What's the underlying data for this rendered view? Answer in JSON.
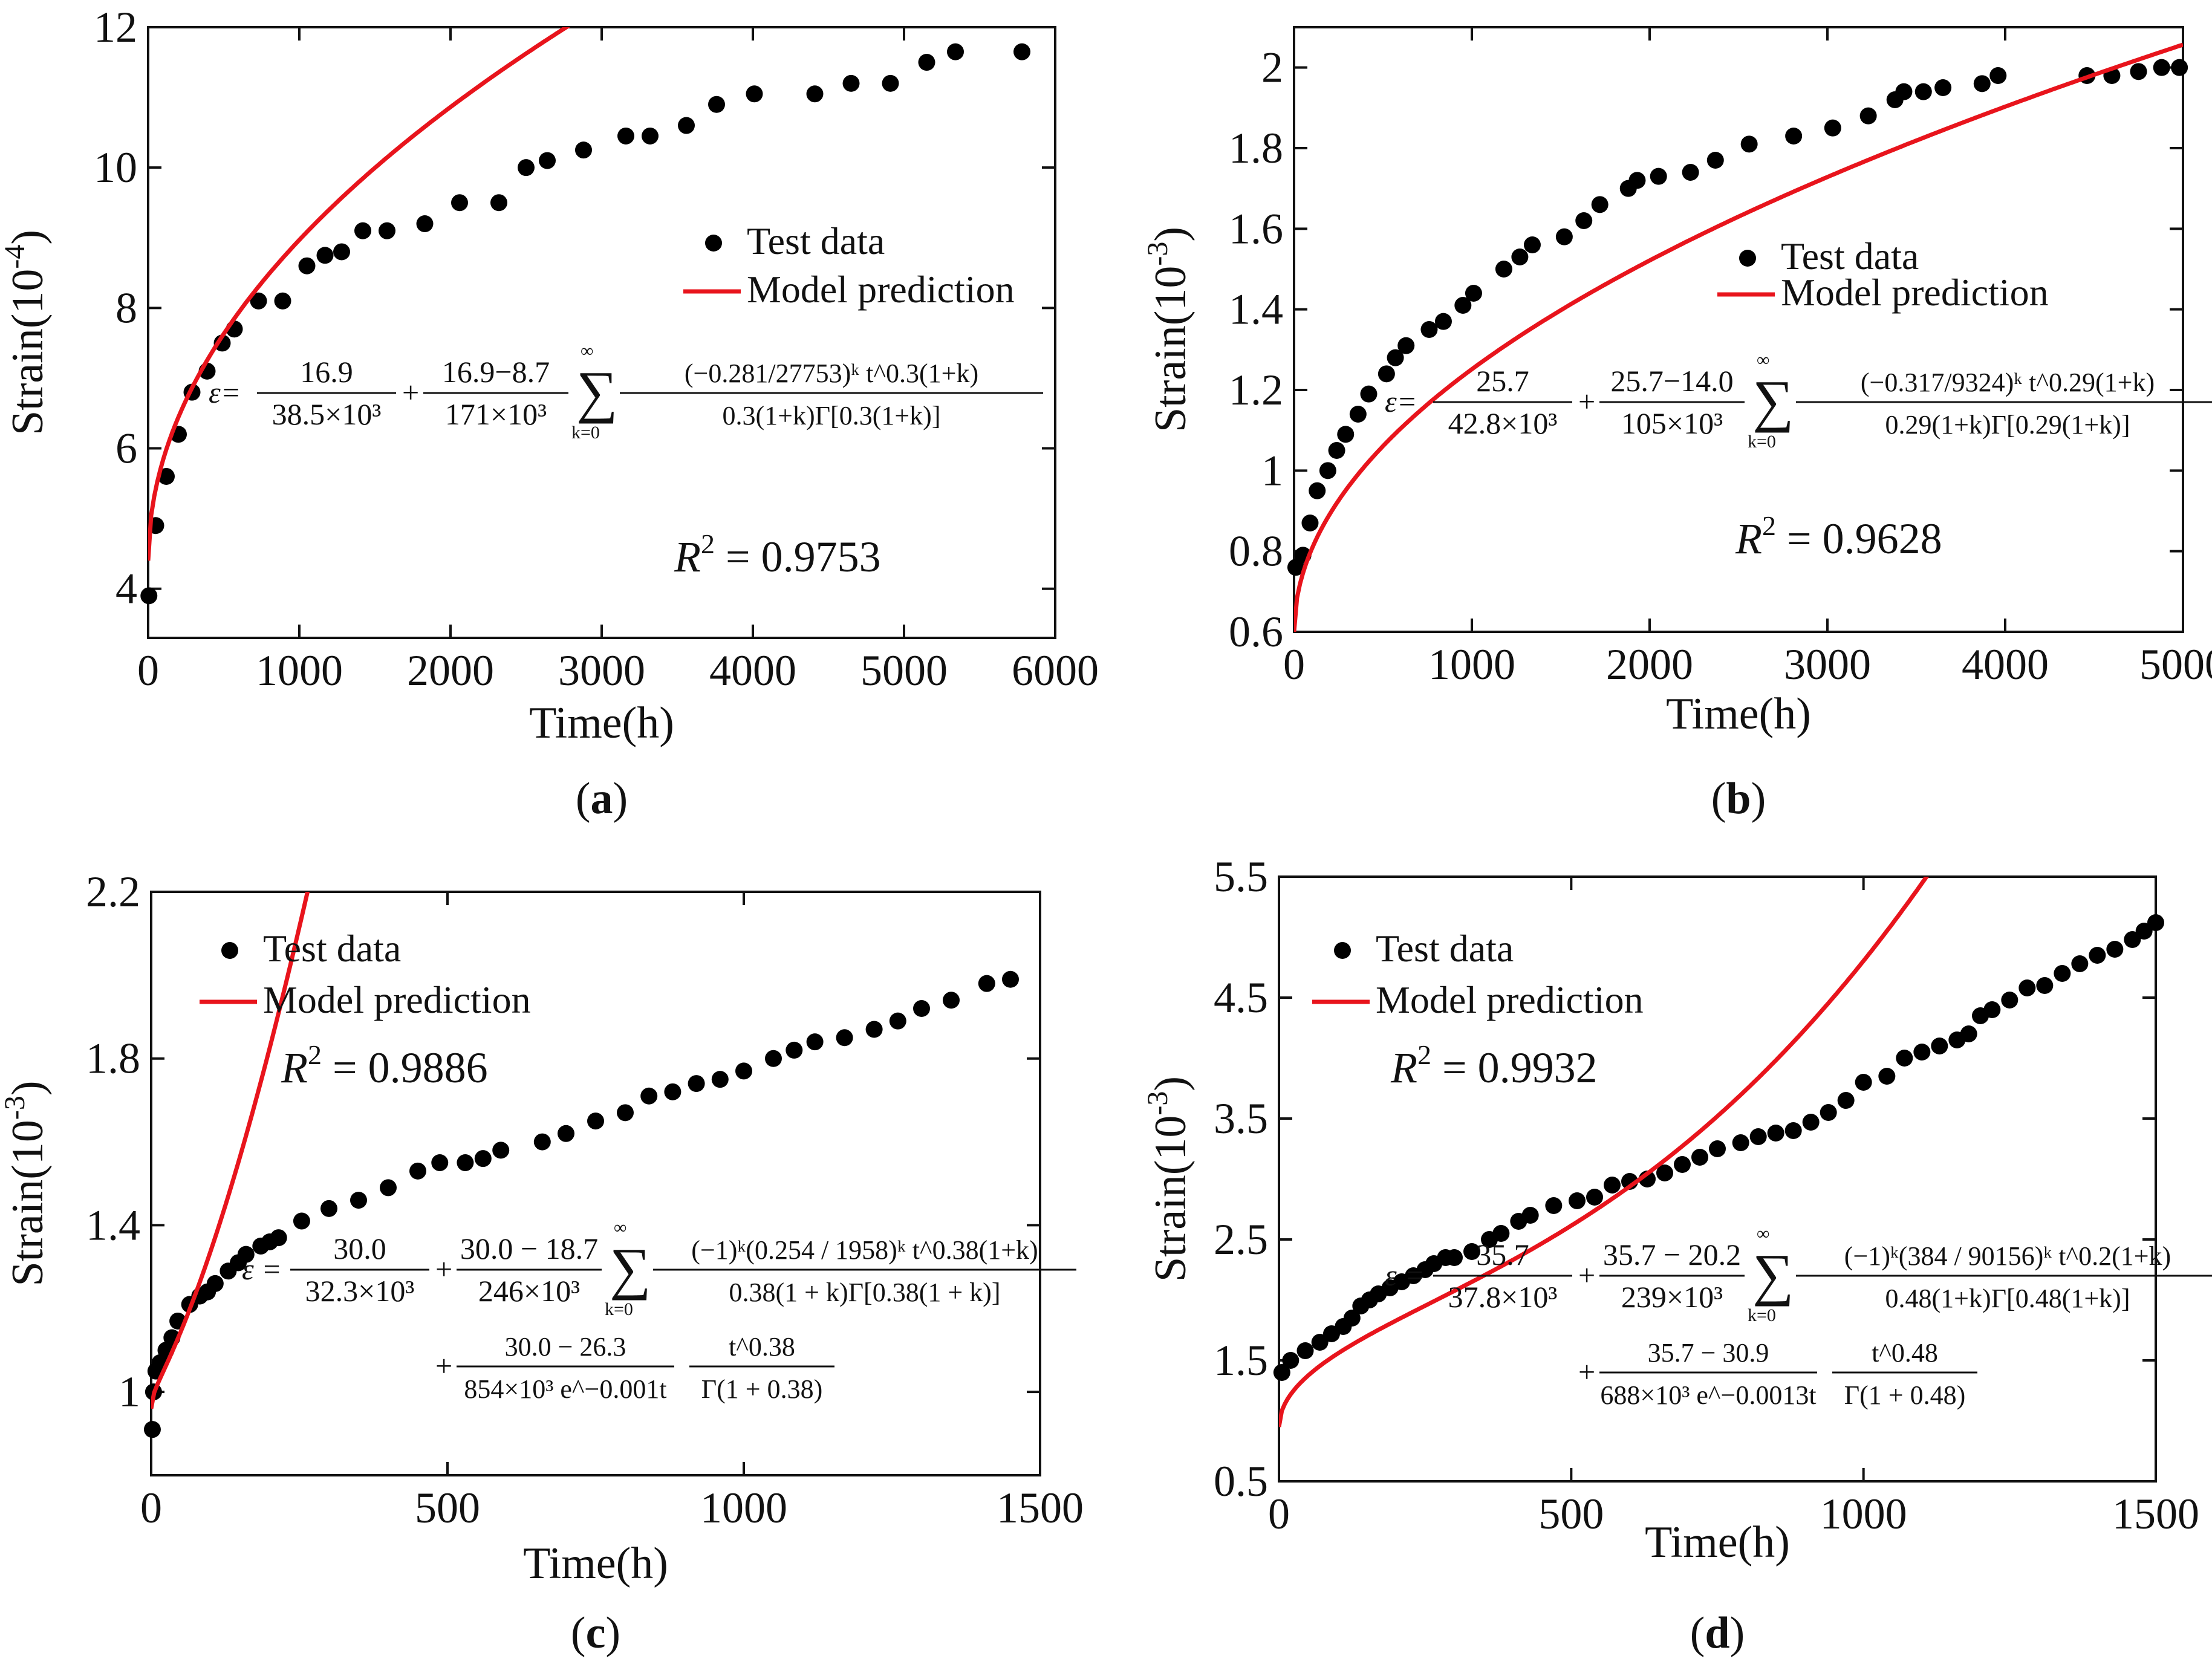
{
  "chart_data": [
    {
      "type": "scatter",
      "panel_label": "a",
      "title": "",
      "xlabel": "Time(h)",
      "ylabel": "Strain(10",
      "ylabel_exp": "-4",
      "xlim": [
        0,
        6000
      ],
      "ylim": [
        3.3,
        12
      ],
      "xticks": [
        0,
        1000,
        2000,
        3000,
        4000,
        5000,
        6000
      ],
      "yticks": [
        4,
        6,
        8,
        10,
        12
      ],
      "legend": [
        "Test data",
        "Model prediction"
      ],
      "r2": "0.9753",
      "equation": {
        "lhs": "ε=",
        "t1": [
          "16.9",
          "38.5×10³"
        ],
        "t2": [
          "16.9−8.7",
          "171×10³"
        ],
        "t3": [
          "(−0.281/27753)ᵏ t^0.3(1+k)",
          "0.3(1+k)Γ[0.3(1+k)]"
        ],
        "sum": "∑ k=0..∞"
      },
      "model": {
        "a": 4.4,
        "b": 0.1445,
        "p": 0.5
      },
      "series": [
        {
          "name": "Test data",
          "points": [
            [
              5,
              3.9
            ],
            [
              50,
              4.9
            ],
            [
              120,
              5.6
            ],
            [
              200,
              6.2
            ],
            [
              290,
              6.8
            ],
            [
              390,
              7.1
            ],
            [
              490,
              7.5
            ],
            [
              570,
              7.7
            ],
            [
              730,
              8.1
            ],
            [
              890,
              8.1
            ],
            [
              1050,
              8.6
            ],
            [
              1170,
              8.75
            ],
            [
              1280,
              8.8
            ],
            [
              1420,
              9.1
            ],
            [
              1580,
              9.1
            ],
            [
              1830,
              9.2
            ],
            [
              2060,
              9.5
            ],
            [
              2320,
              9.5
            ],
            [
              2500,
              10.0
            ],
            [
              2640,
              10.1
            ],
            [
              2880,
              10.25
            ],
            [
              3160,
              10.45
            ],
            [
              3320,
              10.45
            ],
            [
              3560,
              10.6
            ],
            [
              3760,
              10.9
            ],
            [
              4010,
              11.05
            ],
            [
              4410,
              11.05
            ],
            [
              4650,
              11.2
            ],
            [
              4910,
              11.2
            ],
            [
              5150,
              11.5
            ],
            [
              5340,
              11.65
            ],
            [
              5780,
              11.65
            ]
          ]
        }
      ]
    },
    {
      "type": "scatter",
      "panel_label": "b",
      "title": "",
      "xlabel": "Time(h)",
      "ylabel": "Strain(10",
      "ylabel_exp": "-3",
      "xlim": [
        0,
        5000
      ],
      "ylim": [
        0.6,
        2.1
      ],
      "xticks": [
        0,
        1000,
        2000,
        3000,
        4000,
        5000
      ],
      "yticks": [
        0.6,
        0.8,
        1,
        1.2,
        1.4,
        1.6,
        1.8,
        2
      ],
      "legend": [
        "Test data",
        "Model prediction"
      ],
      "r2": "0.9628",
      "equation": {
        "lhs": "ε=",
        "t1": [
          "25.7",
          "42.8×10³"
        ],
        "t2": [
          "25.7−14.0",
          "105×10³"
        ],
        "t3": [
          "(−0.317/9324)ᵏ t^0.29(1+k)",
          "0.29(1+k)Γ[0.29(1+k)]"
        ],
        "sum": "∑ k=0..∞"
      },
      "model": {
        "a": 0.6,
        "b": 0.0206,
        "p": 0.5
      },
      "series": [
        {
          "name": "Test data",
          "points": [
            [
              10,
              0.76
            ],
            [
              50,
              0.79
            ],
            [
              90,
              0.87
            ],
            [
              130,
              0.95
            ],
            [
              190,
              1.0
            ],
            [
              240,
              1.05
            ],
            [
              290,
              1.09
            ],
            [
              360,
              1.14
            ],
            [
              420,
              1.19
            ],
            [
              520,
              1.24
            ],
            [
              570,
              1.28
            ],
            [
              630,
              1.31
            ],
            [
              760,
              1.35
            ],
            [
              840,
              1.37
            ],
            [
              950,
              1.41
            ],
            [
              1010,
              1.44
            ],
            [
              1180,
              1.5
            ],
            [
              1270,
              1.53
            ],
            [
              1340,
              1.56
            ],
            [
              1520,
              1.58
            ],
            [
              1630,
              1.62
            ],
            [
              1720,
              1.66
            ],
            [
              1880,
              1.7
            ],
            [
              1930,
              1.72
            ],
            [
              2050,
              1.73
            ],
            [
              2230,
              1.74
            ],
            [
              2370,
              1.77
            ],
            [
              2560,
              1.81
            ],
            [
              2810,
              1.83
            ],
            [
              3030,
              1.85
            ],
            [
              3230,
              1.88
            ],
            [
              3380,
              1.92
            ],
            [
              3430,
              1.94
            ],
            [
              3540,
              1.94
            ],
            [
              3650,
              1.95
            ],
            [
              3870,
              1.96
            ],
            [
              3960,
              1.98
            ],
            [
              4460,
              1.98
            ],
            [
              4600,
              1.98
            ],
            [
              4750,
              1.99
            ],
            [
              4880,
              2.0
            ],
            [
              4980,
              2.0
            ]
          ]
        }
      ]
    },
    {
      "type": "scatter",
      "panel_label": "c",
      "title": "",
      "xlabel": "Time(h)",
      "ylabel": "Strain(10",
      "ylabel_exp": "-3",
      "xlim": [
        0,
        1500
      ],
      "ylim": [
        0.8,
        2.2
      ],
      "xticks": [
        0,
        500,
        1000,
        1500
      ],
      "yticks": [
        1,
        1.4,
        1.8,
        2.2
      ],
      "legend": [
        "Test data",
        "Model prediction"
      ],
      "r2": "0.9886",
      "equation": {
        "lhs": "ε =",
        "t1": [
          "30.0",
          "32.3×10³"
        ],
        "t2": [
          "30.0 − 18.7",
          "246×10³"
        ],
        "t3": [
          "(−1)ᵏ(0.254 / 1958)ᵏ t^0.38(1+k)",
          "0.38(1 + k)Γ[0.38(1 + k)]"
        ],
        "t4": [
          "30.0 − 26.3",
          "854×10³ e^−0.001t"
        ],
        "t5": [
          "t^0.38",
          "Γ(1 + 0.38)"
        ],
        "sum": "∑ k=0..∞"
      },
      "model": {
        "a": 0.96,
        "b": 0.0172,
        "p": 0.45,
        "c": 0.00024,
        "q": 1.5
      },
      "series": [
        {
          "name": "Test data",
          "points": [
            [
              2,
              0.91
            ],
            [
              4,
              1.0
            ],
            [
              8,
              1.05
            ],
            [
              15,
              1.07
            ],
            [
              25,
              1.1
            ],
            [
              35,
              1.13
            ],
            [
              45,
              1.17
            ],
            [
              65,
              1.21
            ],
            [
              82,
              1.23
            ],
            [
              95,
              1.24
            ],
            [
              108,
              1.26
            ],
            [
              130,
              1.29
            ],
            [
              147,
              1.31
            ],
            [
              160,
              1.33
            ],
            [
              185,
              1.35
            ],
            [
              200,
              1.36
            ],
            [
              215,
              1.37
            ],
            [
              254,
              1.41
            ],
            [
              300,
              1.44
            ],
            [
              350,
              1.46
            ],
            [
              400,
              1.49
            ],
            [
              450,
              1.53
            ],
            [
              487,
              1.55
            ],
            [
              530,
              1.55
            ],
            [
              560,
              1.56
            ],
            [
              590,
              1.58
            ],
            [
              660,
              1.6
            ],
            [
              700,
              1.62
            ],
            [
              750,
              1.65
            ],
            [
              800,
              1.67
            ],
            [
              840,
              1.71
            ],
            [
              880,
              1.72
            ],
            [
              920,
              1.74
            ],
            [
              960,
              1.75
            ],
            [
              1000,
              1.77
            ],
            [
              1050,
              1.8
            ],
            [
              1085,
              1.82
            ],
            [
              1120,
              1.84
            ],
            [
              1170,
              1.85
            ],
            [
              1220,
              1.87
            ],
            [
              1260,
              1.89
            ],
            [
              1300,
              1.92
            ],
            [
              1350,
              1.94
            ],
            [
              1410,
              1.98
            ],
            [
              1450,
              1.99
            ]
          ]
        }
      ]
    },
    {
      "type": "scatter",
      "panel_label": "d",
      "title": "",
      "xlabel": "Time(h)",
      "ylabel": "Strain(10",
      "ylabel_exp": "-3",
      "xlim": [
        0,
        1500
      ],
      "ylim": [
        0.5,
        5.5
      ],
      "xticks": [
        0,
        500,
        1000,
        1500
      ],
      "yticks": [
        0.5,
        1.5,
        2.5,
        3.5,
        4.5,
        5.5
      ],
      "legend": [
        "Test data",
        "Model prediction"
      ],
      "r2": "0.9932",
      "equation": {
        "lhs": "ε =",
        "t1": [
          "35.7",
          "37.8×10³"
        ],
        "t2": [
          "35.7 − 20.2",
          "239×10³"
        ],
        "t3": [
          "(−1)ᵏ(384 / 90156)ᵏ t^0.2(1+k)",
          "0.48(1+k)Γ[0.48(1+k)]"
        ],
        "t4": [
          "35.7 − 30.9",
          "688×10³ e^−0.0013t"
        ],
        "t5": [
          "t^0.48",
          "Γ(1 + 0.48)"
        ],
        "sum": "∑ k=0..∞"
      },
      "model": {
        "a": 0.95,
        "b": 0.06,
        "p": 0.5,
        "c": 3.1e-08,
        "q": 2.6
      },
      "series": [
        {
          "name": "Test data",
          "points": [
            [
              5,
              1.4
            ],
            [
              20,
              1.5
            ],
            [
              45,
              1.58
            ],
            [
              70,
              1.65
            ],
            [
              90,
              1.72
            ],
            [
              110,
              1.78
            ],
            [
              125,
              1.85
            ],
            [
              140,
              1.95
            ],
            [
              155,
              2.0
            ],
            [
              170,
              2.05
            ],
            [
              190,
              2.1
            ],
            [
              210,
              2.15
            ],
            [
              230,
              2.2
            ],
            [
              250,
              2.25
            ],
            [
              265,
              2.3
            ],
            [
              285,
              2.35
            ],
            [
              300,
              2.35
            ],
            [
              330,
              2.4
            ],
            [
              360,
              2.5
            ],
            [
              380,
              2.55
            ],
            [
              410,
              2.65
            ],
            [
              430,
              2.7
            ],
            [
              470,
              2.78
            ],
            [
              510,
              2.82
            ],
            [
              540,
              2.85
            ],
            [
              570,
              2.95
            ],
            [
              600,
              2.98
            ],
            [
              630,
              3.0
            ],
            [
              660,
              3.05
            ],
            [
              690,
              3.12
            ],
            [
              720,
              3.18
            ],
            [
              750,
              3.25
            ],
            [
              790,
              3.3
            ],
            [
              820,
              3.35
            ],
            [
              850,
              3.38
            ],
            [
              880,
              3.4
            ],
            [
              910,
              3.47
            ],
            [
              940,
              3.55
            ],
            [
              970,
              3.65
            ],
            [
              1000,
              3.8
            ],
            [
              1040,
              3.85
            ],
            [
              1070,
              4.0
            ],
            [
              1100,
              4.05
            ],
            [
              1130,
              4.1
            ],
            [
              1160,
              4.15
            ],
            [
              1180,
              4.2
            ],
            [
              1200,
              4.35
            ],
            [
              1220,
              4.4
            ],
            [
              1250,
              4.48
            ],
            [
              1280,
              4.58
            ],
            [
              1310,
              4.6
            ],
            [
              1340,
              4.7
            ],
            [
              1370,
              4.78
            ],
            [
              1400,
              4.85
            ],
            [
              1430,
              4.9
            ],
            [
              1460,
              4.98
            ],
            [
              1480,
              5.05
            ],
            [
              1500,
              5.12
            ]
          ]
        }
      ]
    }
  ]
}
